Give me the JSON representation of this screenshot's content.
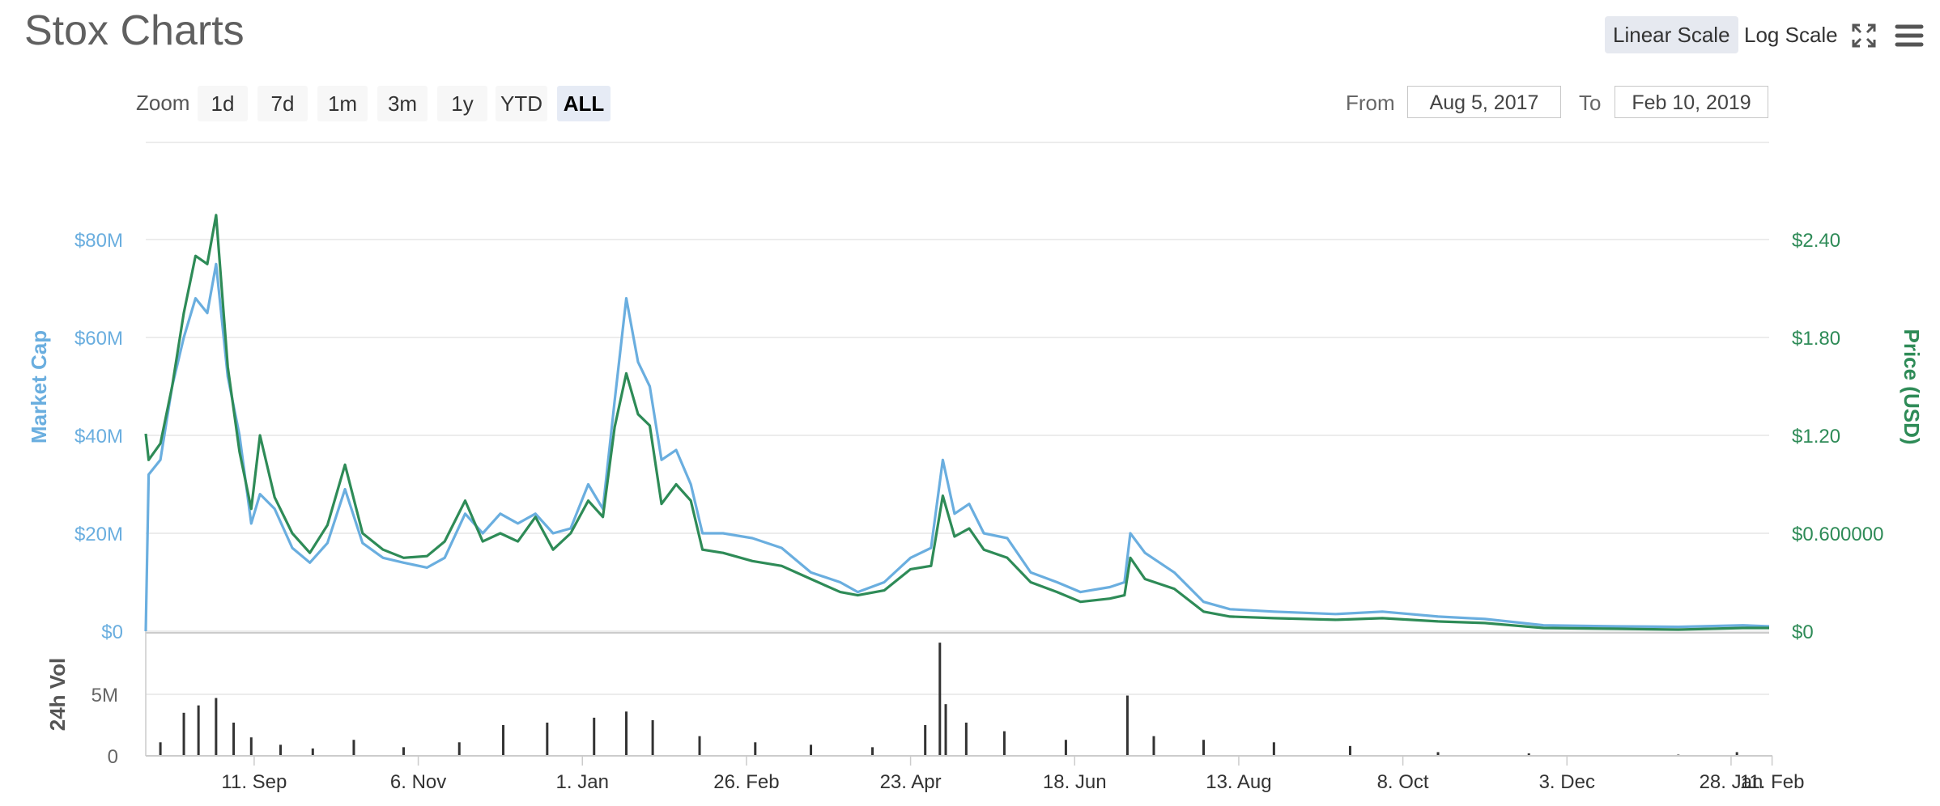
{
  "header": {
    "title": "Stox Charts",
    "linear_scale_label": "Linear Scale",
    "log_scale_label": "Log Scale",
    "active_scale": "Linear Scale",
    "fullscreen_icon": "fullscreen-icon",
    "menu_icon": "menu-icon"
  },
  "toolbar": {
    "zoom_label": "Zoom",
    "zoom_buttons": [
      "1d",
      "7d",
      "1m",
      "3m",
      "1y",
      "YTD",
      "ALL"
    ],
    "active_zoom": "ALL",
    "from_label": "From",
    "from_value": "Aug 5, 2017",
    "to_label": "To",
    "to_value": "Feb 10, 2019"
  },
  "colors": {
    "market_cap": "#6aaedf",
    "price": "#2e8b57",
    "volume": "#333333",
    "grid": "#e6e6e6",
    "axis_text": "#666666"
  },
  "chart_data": {
    "type": "line",
    "y_left_label": "Market Cap",
    "y_left_ticks": [
      "$0",
      "$20M",
      "$40M",
      "$60M",
      "$80M"
    ],
    "y_left_range": [
      0,
      80000000
    ],
    "y_right_label": "Price (USD)",
    "y_right_ticks": [
      "$0",
      "$0.600000",
      "$1.20",
      "$1.80",
      "$2.40"
    ],
    "y_right_range": [
      0,
      2.4
    ],
    "volume_label": "24h Vol",
    "volume_ticks": [
      "0",
      "5M"
    ],
    "volume_range": [
      0,
      10000000
    ],
    "x_ticks": [
      {
        "date": "2017-09-11",
        "label": "11. Sep"
      },
      {
        "date": "2017-11-06",
        "label": "6. Nov"
      },
      {
        "date": "2018-01-01",
        "label": "1. Jan"
      },
      {
        "date": "2018-02-26",
        "label": "26. Feb"
      },
      {
        "date": "2018-04-23",
        "label": "23. Apr"
      },
      {
        "date": "2018-06-18",
        "label": "18. Jun"
      },
      {
        "date": "2018-08-13",
        "label": "13. Aug"
      },
      {
        "date": "2018-10-08",
        "label": "8. Oct"
      },
      {
        "date": "2018-12-03",
        "label": "3. Dec"
      },
      {
        "date": "2019-01-28",
        "label": "28. Jan"
      },
      {
        "date": "2019-02-11",
        "label": "11. Feb"
      }
    ],
    "x_range": [
      "2017-08-05",
      "2019-02-10"
    ],
    "series": [
      {
        "name": "Market Cap",
        "axis": "left",
        "points": [
          [
            "2017-08-05",
            0
          ],
          [
            "2017-08-06",
            32000000
          ],
          [
            "2017-08-10",
            35000000
          ],
          [
            "2017-08-14",
            50000000
          ],
          [
            "2017-08-18",
            60000000
          ],
          [
            "2017-08-22",
            68000000
          ],
          [
            "2017-08-26",
            65000000
          ],
          [
            "2017-08-29",
            75000000
          ],
          [
            "2017-09-02",
            52000000
          ],
          [
            "2017-09-06",
            40000000
          ],
          [
            "2017-09-10",
            22000000
          ],
          [
            "2017-09-13",
            28000000
          ],
          [
            "2017-09-18",
            25000000
          ],
          [
            "2017-09-24",
            17000000
          ],
          [
            "2017-09-30",
            14000000
          ],
          [
            "2017-10-06",
            18000000
          ],
          [
            "2017-10-12",
            29000000
          ],
          [
            "2017-10-18",
            18000000
          ],
          [
            "2017-10-25",
            15000000
          ],
          [
            "2017-11-01",
            14000000
          ],
          [
            "2017-11-09",
            13000000
          ],
          [
            "2017-11-15",
            15000000
          ],
          [
            "2017-11-22",
            24000000
          ],
          [
            "2017-11-28",
            20000000
          ],
          [
            "2017-12-04",
            24000000
          ],
          [
            "2017-12-10",
            22000000
          ],
          [
            "2017-12-16",
            24000000
          ],
          [
            "2017-12-22",
            20000000
          ],
          [
            "2017-12-28",
            21000000
          ],
          [
            "2018-01-03",
            30000000
          ],
          [
            "2018-01-08",
            25000000
          ],
          [
            "2018-01-12",
            47000000
          ],
          [
            "2018-01-16",
            68000000
          ],
          [
            "2018-01-20",
            55000000
          ],
          [
            "2018-01-24",
            50000000
          ],
          [
            "2018-01-28",
            35000000
          ],
          [
            "2018-02-02",
            37000000
          ],
          [
            "2018-02-07",
            30000000
          ],
          [
            "2018-02-11",
            20000000
          ],
          [
            "2018-02-18",
            20000000
          ],
          [
            "2018-02-28",
            19000000
          ],
          [
            "2018-03-10",
            17000000
          ],
          [
            "2018-03-20",
            12000000
          ],
          [
            "2018-03-30",
            10000000
          ],
          [
            "2018-04-05",
            8000000
          ],
          [
            "2018-04-14",
            10000000
          ],
          [
            "2018-04-23",
            15000000
          ],
          [
            "2018-04-30",
            17000000
          ],
          [
            "2018-05-04",
            35000000
          ],
          [
            "2018-05-08",
            24000000
          ],
          [
            "2018-05-13",
            26000000
          ],
          [
            "2018-05-18",
            20000000
          ],
          [
            "2018-05-26",
            19000000
          ],
          [
            "2018-06-03",
            12000000
          ],
          [
            "2018-06-12",
            10000000
          ],
          [
            "2018-06-20",
            8000000
          ],
          [
            "2018-06-30",
            9000000
          ],
          [
            "2018-07-05",
            10000000
          ],
          [
            "2018-07-07",
            20000000
          ],
          [
            "2018-07-12",
            16000000
          ],
          [
            "2018-07-22",
            12000000
          ],
          [
            "2018-08-01",
            6000000
          ],
          [
            "2018-08-10",
            4500000
          ],
          [
            "2018-08-25",
            4000000
          ],
          [
            "2018-09-15",
            3500000
          ],
          [
            "2018-10-01",
            4000000
          ],
          [
            "2018-10-20",
            3000000
          ],
          [
            "2018-11-05",
            2500000
          ],
          [
            "2018-11-25",
            1200000
          ],
          [
            "2018-12-20",
            1000000
          ],
          [
            "2019-01-10",
            900000
          ],
          [
            "2019-02-01",
            1200000
          ],
          [
            "2019-02-10",
            1000000
          ]
        ]
      },
      {
        "name": "Price (USD)",
        "axis": "right",
        "points": [
          [
            "2017-08-05",
            1.21
          ],
          [
            "2017-08-06",
            1.05
          ],
          [
            "2017-08-10",
            1.15
          ],
          [
            "2017-08-14",
            1.5
          ],
          [
            "2017-08-18",
            1.95
          ],
          [
            "2017-08-22",
            2.3
          ],
          [
            "2017-08-26",
            2.25
          ],
          [
            "2017-08-29",
            2.55
          ],
          [
            "2017-09-02",
            1.62
          ],
          [
            "2017-09-06",
            1.1
          ],
          [
            "2017-09-10",
            0.75
          ],
          [
            "2017-09-13",
            1.2
          ],
          [
            "2017-09-18",
            0.82
          ],
          [
            "2017-09-24",
            0.6
          ],
          [
            "2017-09-30",
            0.48
          ],
          [
            "2017-10-06",
            0.65
          ],
          [
            "2017-10-12",
            1.02
          ],
          [
            "2017-10-18",
            0.6
          ],
          [
            "2017-10-25",
            0.5
          ],
          [
            "2017-11-01",
            0.45
          ],
          [
            "2017-11-09",
            0.46
          ],
          [
            "2017-11-15",
            0.55
          ],
          [
            "2017-11-22",
            0.8
          ],
          [
            "2017-11-28",
            0.55
          ],
          [
            "2017-12-04",
            0.6
          ],
          [
            "2017-12-10",
            0.55
          ],
          [
            "2017-12-16",
            0.7
          ],
          [
            "2017-12-22",
            0.5
          ],
          [
            "2017-12-28",
            0.6
          ],
          [
            "2018-01-03",
            0.8
          ],
          [
            "2018-01-08",
            0.7
          ],
          [
            "2018-01-12",
            1.25
          ],
          [
            "2018-01-16",
            1.58
          ],
          [
            "2018-01-20",
            1.33
          ],
          [
            "2018-01-24",
            1.26
          ],
          [
            "2018-01-28",
            0.78
          ],
          [
            "2018-02-02",
            0.9
          ],
          [
            "2018-02-07",
            0.8
          ],
          [
            "2018-02-11",
            0.5
          ],
          [
            "2018-02-18",
            0.48
          ],
          [
            "2018-02-28",
            0.43
          ],
          [
            "2018-03-10",
            0.4
          ],
          [
            "2018-03-20",
            0.32
          ],
          [
            "2018-03-30",
            0.24
          ],
          [
            "2018-04-05",
            0.22
          ],
          [
            "2018-04-14",
            0.25
          ],
          [
            "2018-04-23",
            0.38
          ],
          [
            "2018-04-30",
            0.4
          ],
          [
            "2018-05-04",
            0.83
          ],
          [
            "2018-05-08",
            0.58
          ],
          [
            "2018-05-13",
            0.63
          ],
          [
            "2018-05-18",
            0.5
          ],
          [
            "2018-05-26",
            0.45
          ],
          [
            "2018-06-03",
            0.3
          ],
          [
            "2018-06-12",
            0.24
          ],
          [
            "2018-06-20",
            0.18
          ],
          [
            "2018-06-30",
            0.2
          ],
          [
            "2018-07-05",
            0.22
          ],
          [
            "2018-07-07",
            0.45
          ],
          [
            "2018-07-12",
            0.32
          ],
          [
            "2018-07-22",
            0.26
          ],
          [
            "2018-08-01",
            0.12
          ],
          [
            "2018-08-10",
            0.09
          ],
          [
            "2018-08-25",
            0.08
          ],
          [
            "2018-09-15",
            0.07
          ],
          [
            "2018-10-01",
            0.08
          ],
          [
            "2018-10-20",
            0.06
          ],
          [
            "2018-11-05",
            0.05
          ],
          [
            "2018-11-25",
            0.02
          ],
          [
            "2018-12-20",
            0.015
          ],
          [
            "2019-01-10",
            0.01
          ],
          [
            "2019-02-01",
            0.02
          ],
          [
            "2019-02-10",
            0.02
          ]
        ]
      },
      {
        "name": "24h Vol",
        "axis": "volume",
        "type": "bar",
        "points": [
          [
            "2017-08-10",
            1100000
          ],
          [
            "2017-08-18",
            3500000
          ],
          [
            "2017-08-23",
            4100000
          ],
          [
            "2017-08-29",
            4700000
          ],
          [
            "2017-09-04",
            2700000
          ],
          [
            "2017-09-10",
            1500000
          ],
          [
            "2017-09-20",
            900000
          ],
          [
            "2017-10-01",
            600000
          ],
          [
            "2017-10-15",
            1300000
          ],
          [
            "2017-11-01",
            700000
          ],
          [
            "2017-11-20",
            1100000
          ],
          [
            "2017-12-05",
            2500000
          ],
          [
            "2017-12-20",
            2700000
          ],
          [
            "2018-01-05",
            3100000
          ],
          [
            "2018-01-16",
            3600000
          ],
          [
            "2018-01-25",
            2900000
          ],
          [
            "2018-02-10",
            1600000
          ],
          [
            "2018-03-01",
            1100000
          ],
          [
            "2018-03-20",
            900000
          ],
          [
            "2018-04-10",
            700000
          ],
          [
            "2018-04-28",
            2500000
          ],
          [
            "2018-05-03",
            9200000
          ],
          [
            "2018-05-05",
            4200000
          ],
          [
            "2018-05-12",
            2700000
          ],
          [
            "2018-05-25",
            2000000
          ],
          [
            "2018-06-15",
            1300000
          ],
          [
            "2018-07-06",
            4900000
          ],
          [
            "2018-07-15",
            1600000
          ],
          [
            "2018-08-01",
            1300000
          ],
          [
            "2018-08-25",
            1100000
          ],
          [
            "2018-09-20",
            800000
          ],
          [
            "2018-10-20",
            300000
          ],
          [
            "2018-11-20",
            200000
          ],
          [
            "2019-01-10",
            100000
          ],
          [
            "2019-01-30",
            300000
          ]
        ]
      }
    ]
  }
}
